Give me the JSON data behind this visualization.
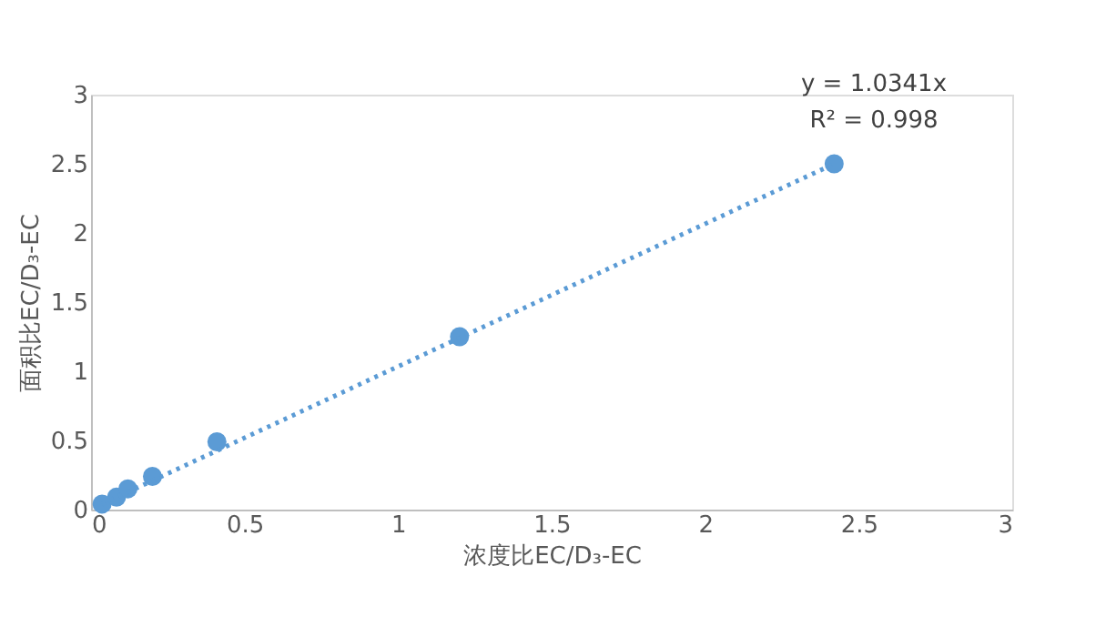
{
  "chart_data": {
    "type": "scatter",
    "xlabel": "浓度比EC/D₃-EC",
    "ylabel": "面积比EC/D₃-EC",
    "xlim": [
      0,
      3
    ],
    "ylim": [
      0,
      3
    ],
    "xticks": [
      0,
      0.5,
      1,
      1.5,
      2,
      2.5,
      3
    ],
    "yticks": [
      0,
      0.5,
      1,
      1.5,
      2,
      2.5,
      3
    ],
    "series": [
      {
        "color": "#5b9bd5",
        "marker": "circle",
        "x": [
          0.036,
          0.083,
          0.12,
          0.2,
          0.41,
          1.2,
          2.42
        ],
        "values": [
          0.04,
          0.09,
          0.15,
          0.24,
          0.49,
          1.25,
          2.5
        ]
      },
      {
        "type": "line",
        "color": "#5b9bd5",
        "line_style": "dotted",
        "x": [
          0.036,
          2.42
        ],
        "values": [
          0.04,
          2.5
        ]
      }
    ],
    "annotations": [
      "y = 1.0341x",
      "R² = 0.998"
    ]
  }
}
